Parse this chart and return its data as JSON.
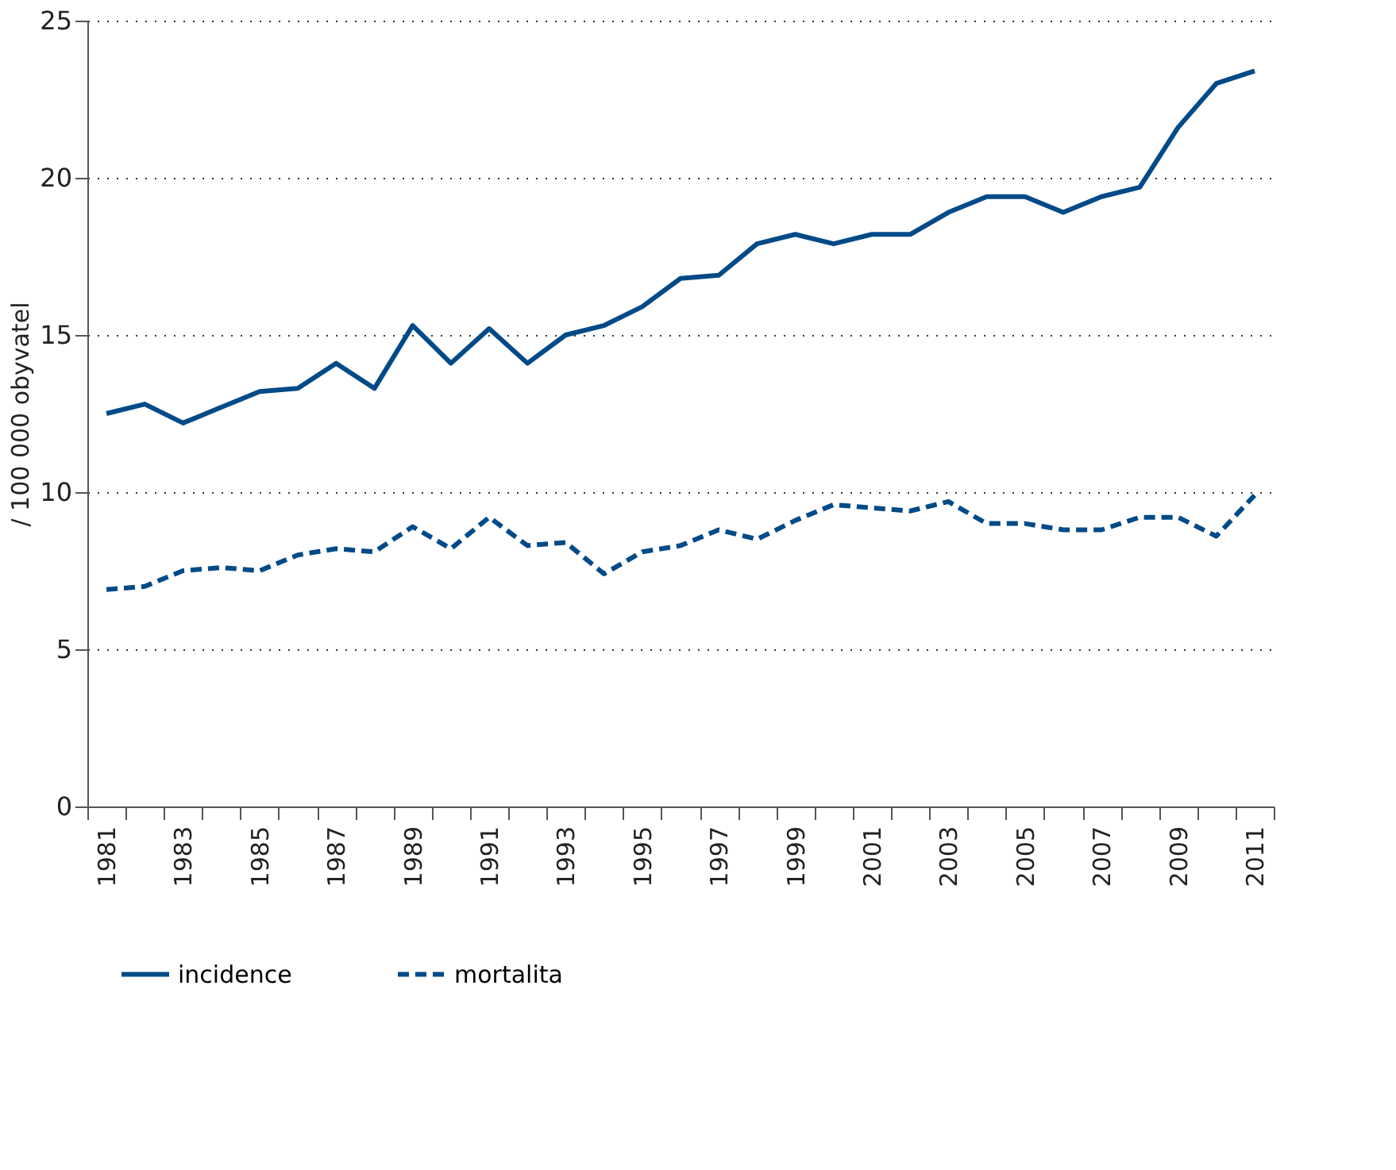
{
  "chart_data": {
    "type": "line",
    "ylabel": "/ 100 000 obyvatel",
    "categories": [
      "1981",
      null,
      "1983",
      null,
      "1985",
      null,
      "1987",
      null,
      "1989",
      null,
      "1991",
      null,
      "1993",
      null,
      "1995",
      null,
      "1997",
      null,
      "1999",
      null,
      "2001",
      null,
      "2003",
      null,
      "2005",
      null,
      "2007",
      null,
      "2009",
      null,
      "2011"
    ],
    "series": [
      {
        "name": "incidence",
        "color": "#004a87",
        "line_style": "solid",
        "values": [
          12.5,
          12.8,
          12.2,
          12.7,
          13.2,
          13.3,
          14.1,
          13.3,
          15.3,
          14.1,
          15.2,
          14.1,
          15.0,
          15.3,
          15.9,
          16.8,
          16.9,
          17.9,
          18.2,
          17.9,
          18.2,
          18.2,
          18.9,
          19.4,
          19.4,
          18.9,
          19.4,
          19.7,
          21.6,
          23.0,
          23.4
        ]
      },
      {
        "name": "mortalita",
        "color": "#004a87",
        "line_style": "dashed",
        "values": [
          6.9,
          7.0,
          7.5,
          7.6,
          7.5,
          8.0,
          8.2,
          8.1,
          8.9,
          8.2,
          9.2,
          8.3,
          8.4,
          7.4,
          8.1,
          8.3,
          8.8,
          8.5,
          9.1,
          9.6,
          9.5,
          9.4,
          9.7,
          9.0,
          9.0,
          8.8,
          8.8,
          9.2,
          9.2,
          8.6,
          9.9
        ]
      }
    ],
    "ylim": [
      0,
      25
    ],
    "yticks": [
      0,
      5,
      10,
      15,
      20,
      25
    ],
    "grid": "y",
    "legend": "bottom"
  }
}
